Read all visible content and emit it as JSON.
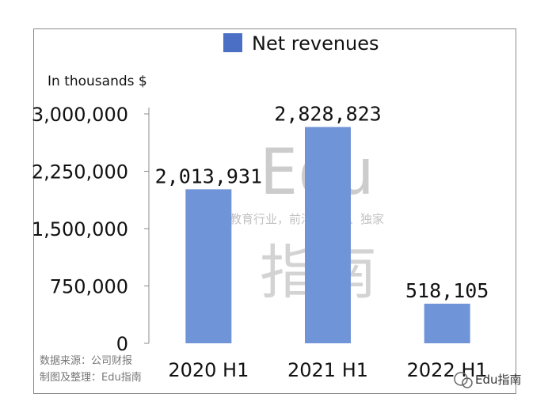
{
  "chart_data": {
    "type": "bar",
    "legend": "Net revenues",
    "unit_label": "In thousands $",
    "categories": [
      "2020 H1",
      "2021 H1",
      "2022 H1"
    ],
    "values": [
      2013931,
      2828823,
      518105
    ],
    "value_labels": [
      "2,013,931",
      "2,828,823",
      "518,105"
    ],
    "ylim": [
      0,
      3000000
    ],
    "yticks": [
      0,
      750000,
      1500000,
      2250000,
      3000000
    ],
    "ytick_labels": [
      "0",
      "750,000",
      "1,500,000",
      "2,250,000",
      "3,000,000"
    ],
    "legend_position": "top-center",
    "grid": false,
    "colors": {
      "bar": "#7094d8",
      "legend": "#4a6fc4"
    }
  },
  "source_note": {
    "line1": "数据来源：公司财报",
    "line2": "制图及整理：Edu指南"
  },
  "watermark": {
    "latin": "Edu",
    "tagline": "教育行业，前沿、深度、独家",
    "chinese": "指南"
  },
  "brand_corner": "Edu指南"
}
